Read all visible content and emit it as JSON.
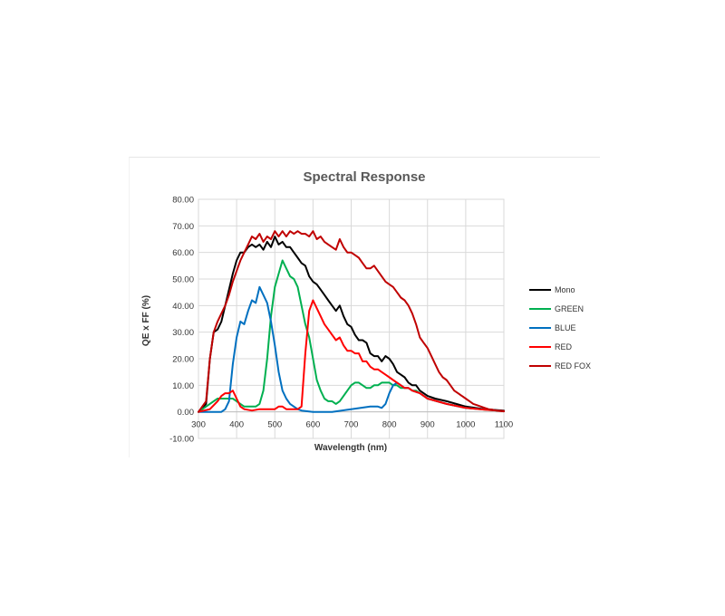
{
  "chart_data": {
    "type": "line",
    "title": "Spectral Response",
    "xlabel": "Wavelength (nm)",
    "ylabel": "QE x FF (%)",
    "xlim": [
      300,
      1100
    ],
    "ylim": [
      -10,
      80
    ],
    "xticks": [
      "300",
      "400",
      "500",
      "600",
      "700",
      "800",
      "900",
      "1000",
      "1100"
    ],
    "yticks": [
      "-10.00",
      "0.00",
      "10.00",
      "20.00",
      "30.00",
      "40.00",
      "50.00",
      "60.00",
      "70.00",
      "80.00"
    ],
    "grid": true,
    "legend_position": "right",
    "series": [
      {
        "name": "Mono",
        "color": "#000000",
        "points": [
          [
            300,
            0
          ],
          [
            320,
            3
          ],
          [
            330,
            20
          ],
          [
            340,
            30
          ],
          [
            350,
            31
          ],
          [
            360,
            34
          ],
          [
            370,
            40
          ],
          [
            380,
            46
          ],
          [
            390,
            52
          ],
          [
            400,
            57
          ],
          [
            410,
            60
          ],
          [
            420,
            60
          ],
          [
            430,
            62
          ],
          [
            440,
            63
          ],
          [
            450,
            62
          ],
          [
            460,
            63
          ],
          [
            470,
            61
          ],
          [
            480,
            64
          ],
          [
            490,
            62
          ],
          [
            500,
            66
          ],
          [
            510,
            63
          ],
          [
            520,
            64
          ],
          [
            530,
            62
          ],
          [
            540,
            62
          ],
          [
            550,
            60
          ],
          [
            560,
            58
          ],
          [
            570,
            56
          ],
          [
            580,
            55
          ],
          [
            590,
            51
          ],
          [
            600,
            49
          ],
          [
            610,
            48
          ],
          [
            620,
            46
          ],
          [
            630,
            44
          ],
          [
            640,
            42
          ],
          [
            650,
            40
          ],
          [
            660,
            38
          ],
          [
            670,
            40
          ],
          [
            680,
            36
          ],
          [
            690,
            33
          ],
          [
            700,
            32
          ],
          [
            710,
            29
          ],
          [
            720,
            27
          ],
          [
            730,
            27
          ],
          [
            740,
            26
          ],
          [
            750,
            22
          ],
          [
            760,
            21
          ],
          [
            770,
            21
          ],
          [
            780,
            19
          ],
          [
            790,
            21
          ],
          [
            800,
            20
          ],
          [
            810,
            18
          ],
          [
            820,
            15
          ],
          [
            830,
            14
          ],
          [
            840,
            13
          ],
          [
            850,
            11
          ],
          [
            860,
            10
          ],
          [
            870,
            10
          ],
          [
            880,
            8
          ],
          [
            900,
            6
          ],
          [
            920,
            5
          ],
          [
            950,
            4
          ],
          [
            1000,
            2
          ],
          [
            1050,
            1
          ],
          [
            1100,
            0.5
          ]
        ]
      },
      {
        "name": "GREEN",
        "color": "#00b050",
        "points": [
          [
            300,
            0
          ],
          [
            320,
            2
          ],
          [
            340,
            4
          ],
          [
            350,
            5
          ],
          [
            360,
            5
          ],
          [
            370,
            5
          ],
          [
            380,
            5
          ],
          [
            390,
            5
          ],
          [
            400,
            4
          ],
          [
            410,
            3
          ],
          [
            420,
            2
          ],
          [
            430,
            2
          ],
          [
            440,
            2
          ],
          [
            450,
            2
          ],
          [
            460,
            3
          ],
          [
            470,
            8
          ],
          [
            480,
            20
          ],
          [
            490,
            36
          ],
          [
            500,
            47
          ],
          [
            510,
            52
          ],
          [
            520,
            57
          ],
          [
            530,
            54
          ],
          [
            540,
            51
          ],
          [
            550,
            50
          ],
          [
            560,
            47
          ],
          [
            570,
            40
          ],
          [
            580,
            33
          ],
          [
            590,
            28
          ],
          [
            600,
            20
          ],
          [
            610,
            12
          ],
          [
            620,
            8
          ],
          [
            630,
            5
          ],
          [
            640,
            4
          ],
          [
            650,
            4
          ],
          [
            660,
            3
          ],
          [
            670,
            4
          ],
          [
            680,
            6
          ],
          [
            690,
            8
          ],
          [
            700,
            10
          ],
          [
            710,
            11
          ],
          [
            720,
            11
          ],
          [
            730,
            10
          ],
          [
            740,
            9
          ],
          [
            750,
            9
          ],
          [
            760,
            10
          ],
          [
            770,
            10
          ],
          [
            780,
            11
          ],
          [
            790,
            11
          ],
          [
            800,
            11
          ],
          [
            810,
            10
          ],
          [
            820,
            10
          ],
          [
            830,
            9
          ],
          [
            840,
            9
          ],
          [
            850,
            9
          ],
          [
            860,
            8
          ],
          [
            870,
            8
          ],
          [
            880,
            7
          ],
          [
            900,
            5
          ],
          [
            950,
            3
          ],
          [
            1000,
            1.5
          ],
          [
            1050,
            0.8
          ],
          [
            1100,
            0.3
          ]
        ]
      },
      {
        "name": "BLUE",
        "color": "#0070c0",
        "points": [
          [
            300,
            0
          ],
          [
            340,
            0
          ],
          [
            360,
            0
          ],
          [
            370,
            1
          ],
          [
            380,
            4
          ],
          [
            390,
            18
          ],
          [
            400,
            28
          ],
          [
            410,
            34
          ],
          [
            420,
            33
          ],
          [
            430,
            38
          ],
          [
            440,
            42
          ],
          [
            450,
            41
          ],
          [
            460,
            47
          ],
          [
            470,
            44
          ],
          [
            480,
            41
          ],
          [
            490,
            34
          ],
          [
            500,
            25
          ],
          [
            510,
            15
          ],
          [
            520,
            8
          ],
          [
            530,
            5
          ],
          [
            540,
            3
          ],
          [
            550,
            2
          ],
          [
            560,
            1
          ],
          [
            570,
            0.5
          ],
          [
            600,
            0
          ],
          [
            650,
            0
          ],
          [
            700,
            1
          ],
          [
            750,
            2
          ],
          [
            770,
            2
          ],
          [
            780,
            1.5
          ],
          [
            790,
            3
          ],
          [
            800,
            7
          ],
          [
            810,
            10
          ],
          [
            820,
            11
          ],
          [
            830,
            10
          ],
          [
            840,
            9
          ],
          [
            850,
            9
          ],
          [
            860,
            8
          ],
          [
            880,
            7
          ],
          [
            900,
            5
          ],
          [
            950,
            3
          ],
          [
            1000,
            1.5
          ],
          [
            1100,
            0.3
          ]
        ]
      },
      {
        "name": "RED",
        "color": "#ff0000",
        "points": [
          [
            300,
            0
          ],
          [
            330,
            1
          ],
          [
            350,
            4
          ],
          [
            360,
            6
          ],
          [
            370,
            7
          ],
          [
            380,
            7
          ],
          [
            390,
            8
          ],
          [
            400,
            5
          ],
          [
            410,
            2
          ],
          [
            420,
            1
          ],
          [
            440,
            0.5
          ],
          [
            460,
            1
          ],
          [
            480,
            1
          ],
          [
            500,
            1
          ],
          [
            510,
            2
          ],
          [
            520,
            2
          ],
          [
            530,
            1
          ],
          [
            540,
            1
          ],
          [
            550,
            1
          ],
          [
            560,
            1
          ],
          [
            570,
            2
          ],
          [
            580,
            22
          ],
          [
            590,
            38
          ],
          [
            600,
            42
          ],
          [
            610,
            39
          ],
          [
            620,
            36
          ],
          [
            630,
            33
          ],
          [
            640,
            31
          ],
          [
            650,
            29
          ],
          [
            660,
            27
          ],
          [
            670,
            28
          ],
          [
            680,
            25
          ],
          [
            690,
            23
          ],
          [
            700,
            23
          ],
          [
            710,
            22
          ],
          [
            720,
            22
          ],
          [
            730,
            19
          ],
          [
            740,
            19
          ],
          [
            750,
            17
          ],
          [
            760,
            16
          ],
          [
            770,
            16
          ],
          [
            780,
            15
          ],
          [
            790,
            14
          ],
          [
            800,
            13
          ],
          [
            810,
            12
          ],
          [
            820,
            11
          ],
          [
            830,
            10
          ],
          [
            840,
            9
          ],
          [
            850,
            9
          ],
          [
            860,
            8
          ],
          [
            880,
            7
          ],
          [
            900,
            5
          ],
          [
            950,
            3
          ],
          [
            1000,
            1.5
          ],
          [
            1050,
            0.8
          ],
          [
            1100,
            0.3
          ]
        ]
      },
      {
        "name": "RED FOX",
        "color": "#c00000",
        "points": [
          [
            300,
            0
          ],
          [
            320,
            4
          ],
          [
            330,
            20
          ],
          [
            340,
            30
          ],
          [
            350,
            34
          ],
          [
            360,
            37
          ],
          [
            370,
            40
          ],
          [
            380,
            44
          ],
          [
            390,
            49
          ],
          [
            400,
            53
          ],
          [
            410,
            57
          ],
          [
            420,
            60
          ],
          [
            430,
            63
          ],
          [
            440,
            66
          ],
          [
            450,
            65
          ],
          [
            460,
            67
          ],
          [
            470,
            64
          ],
          [
            480,
            66
          ],
          [
            490,
            65
          ],
          [
            500,
            68
          ],
          [
            510,
            66
          ],
          [
            520,
            68
          ],
          [
            530,
            66
          ],
          [
            540,
            68
          ],
          [
            550,
            67
          ],
          [
            560,
            68
          ],
          [
            570,
            67
          ],
          [
            580,
            67
          ],
          [
            590,
            66
          ],
          [
            600,
            68
          ],
          [
            610,
            65
          ],
          [
            620,
            66
          ],
          [
            630,
            64
          ],
          [
            640,
            63
          ],
          [
            650,
            62
          ],
          [
            660,
            61
          ],
          [
            670,
            65
          ],
          [
            680,
            62
          ],
          [
            690,
            60
          ],
          [
            700,
            60
          ],
          [
            710,
            59
          ],
          [
            720,
            58
          ],
          [
            730,
            56
          ],
          [
            740,
            54
          ],
          [
            750,
            54
          ],
          [
            760,
            55
          ],
          [
            770,
            53
          ],
          [
            780,
            51
          ],
          [
            790,
            49
          ],
          [
            800,
            48
          ],
          [
            810,
            47
          ],
          [
            820,
            45
          ],
          [
            830,
            43
          ],
          [
            840,
            42
          ],
          [
            850,
            40
          ],
          [
            860,
            37
          ],
          [
            870,
            33
          ],
          [
            880,
            28
          ],
          [
            890,
            26
          ],
          [
            900,
            24
          ],
          [
            910,
            21
          ],
          [
            920,
            18
          ],
          [
            930,
            15
          ],
          [
            940,
            13
          ],
          [
            950,
            12
          ],
          [
            960,
            10
          ],
          [
            970,
            8
          ],
          [
            980,
            7
          ],
          [
            990,
            6
          ],
          [
            1000,
            5
          ],
          [
            1010,
            4
          ],
          [
            1020,
            3
          ],
          [
            1030,
            2.5
          ],
          [
            1040,
            2
          ],
          [
            1050,
            1.5
          ],
          [
            1060,
            1
          ],
          [
            1070,
            0.8
          ],
          [
            1080,
            0.5
          ],
          [
            1090,
            0.3
          ],
          [
            1100,
            0.2
          ]
        ]
      }
    ]
  }
}
